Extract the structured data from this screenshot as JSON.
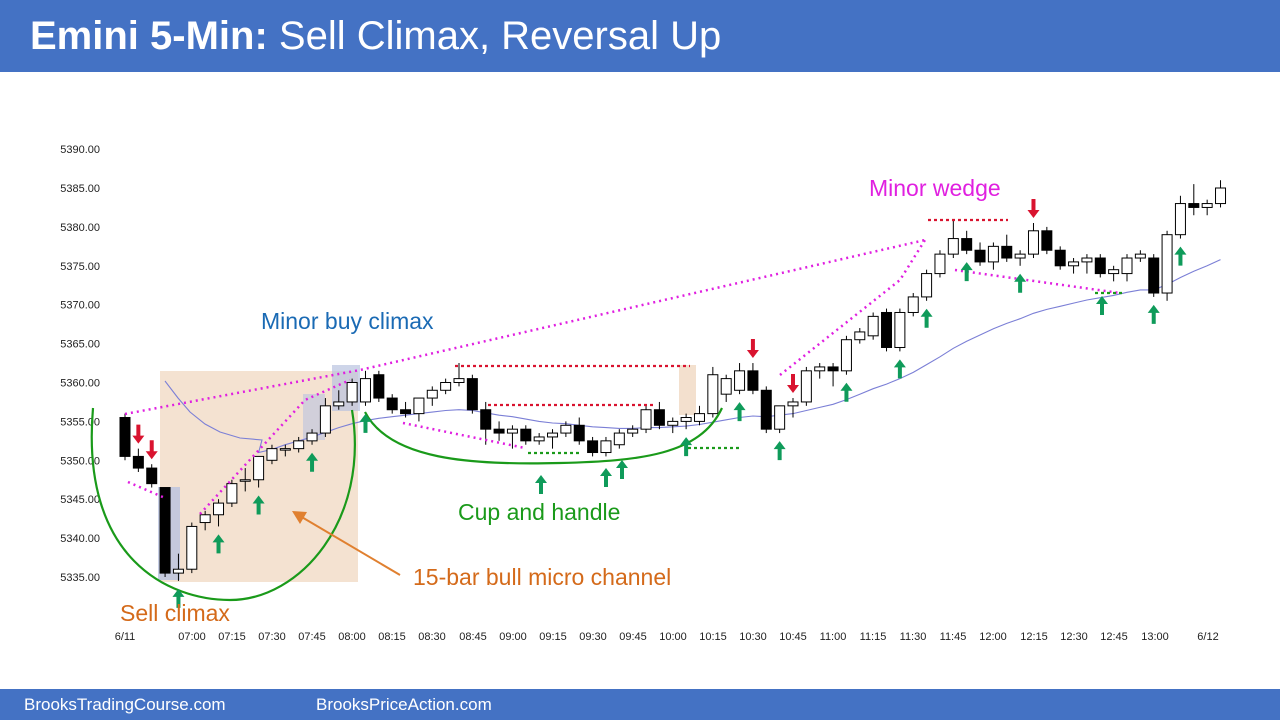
{
  "header": {
    "title_bold": "Emini 5-Min:",
    "title_rest": "Sell Climax, Reversal Up"
  },
  "footer": {
    "left_link": "BrooksTradingCourse.com",
    "right_link": "BrooksPriceAction.com"
  },
  "colors": {
    "banner": "#4472c4",
    "bull_arrow": "#0f9b5a",
    "bear_arrow": "#d9132f",
    "wedge_line": "#e020e0",
    "ema": "#7b7fd6",
    "cup": "#1a9a1a",
    "sell_climax_label": "#d46a1a",
    "buy_climax_label": "#1a6ab4"
  },
  "chart_data": {
    "type": "candlestick",
    "title": "Emini 5-Min: Sell Climax, Reversal Up",
    "y_ticks": [
      "5390.00",
      "5385.00",
      "5380.00",
      "5375.00",
      "5370.00",
      "5365.00",
      "5360.00",
      "5355.00",
      "5350.00",
      "5345.00",
      "5340.00",
      "5335.00"
    ],
    "ylim": [
      5332.5,
      5392.5
    ],
    "x_ticks": [
      "6/11",
      "07:00",
      "07:15",
      "07:30",
      "07:45",
      "08:00",
      "08:15",
      "08:30",
      "08:45",
      "09:00",
      "09:15",
      "09:30",
      "09:45",
      "10:00",
      "10:15",
      "10:30",
      "10:45",
      "11:00",
      "11:15",
      "11:30",
      "11:45",
      "12:00",
      "12:15",
      "12:30",
      "12:45",
      "13:00",
      "6/12"
    ],
    "grid": false,
    "candles": [
      {
        "o": 5355.5,
        "h": 5356.0,
        "l": 5350.0,
        "c": 5350.5
      },
      {
        "o": 5350.5,
        "h": 5351.5,
        "l": 5348.5,
        "c": 5349.0
      },
      {
        "o": 5349.0,
        "h": 5349.5,
        "l": 5346.5,
        "c": 5347.0
      },
      {
        "o": 5346.5,
        "h": 5346.5,
        "l": 5335.0,
        "c": 5335.5
      },
      {
        "o": 5335.5,
        "h": 5338.0,
        "l": 5334.5,
        "c": 5336.0
      },
      {
        "o": 5336.0,
        "h": 5342.0,
        "l": 5335.5,
        "c": 5341.5
      },
      {
        "o": 5342.0,
        "h": 5343.5,
        "l": 5341.0,
        "c": 5343.0
      },
      {
        "o": 5343.0,
        "h": 5345.0,
        "l": 5341.5,
        "c": 5344.5
      },
      {
        "o": 5344.5,
        "h": 5347.5,
        "l": 5344.0,
        "c": 5347.0
      },
      {
        "o": 5347.5,
        "h": 5349.0,
        "l": 5346.0,
        "c": 5347.5
      },
      {
        "o": 5347.5,
        "h": 5350.5,
        "l": 5346.5,
        "c": 5350.5
      },
      {
        "o": 5350.0,
        "h": 5352.0,
        "l": 5349.5,
        "c": 5351.5
      },
      {
        "o": 5351.5,
        "h": 5352.0,
        "l": 5350.5,
        "c": 5351.5
      },
      {
        "o": 5351.5,
        "h": 5353.0,
        "l": 5351.0,
        "c": 5352.5
      },
      {
        "o": 5352.5,
        "h": 5354.0,
        "l": 5352.0,
        "c": 5353.5
      },
      {
        "o": 5353.5,
        "h": 5358.0,
        "l": 5353.0,
        "c": 5357.0
      },
      {
        "o": 5357.0,
        "h": 5359.0,
        "l": 5356.5,
        "c": 5357.5
      },
      {
        "o": 5357.5,
        "h": 5360.5,
        "l": 5357.0,
        "c": 5360.0
      },
      {
        "o": 5357.5,
        "h": 5361.5,
        "l": 5357.0,
        "c": 5360.5
      },
      {
        "o": 5361.0,
        "h": 5361.5,
        "l": 5357.5,
        "c": 5358.0
      },
      {
        "o": 5358.0,
        "h": 5358.5,
        "l": 5356.0,
        "c": 5356.5
      },
      {
        "o": 5356.5,
        "h": 5357.5,
        "l": 5355.5,
        "c": 5356.0
      },
      {
        "o": 5356.0,
        "h": 5358.0,
        "l": 5355.0,
        "c": 5358.0
      },
      {
        "o": 5358.0,
        "h": 5359.5,
        "l": 5357.0,
        "c": 5359.0
      },
      {
        "o": 5359.0,
        "h": 5360.5,
        "l": 5358.5,
        "c": 5360.0
      },
      {
        "o": 5360.0,
        "h": 5362.5,
        "l": 5359.5,
        "c": 5360.5
      },
      {
        "o": 5360.5,
        "h": 5361.0,
        "l": 5356.0,
        "c": 5356.5
      },
      {
        "o": 5356.5,
        "h": 5357.5,
        "l": 5352.0,
        "c": 5354.0
      },
      {
        "o": 5354.0,
        "h": 5355.0,
        "l": 5352.5,
        "c": 5353.5
      },
      {
        "o": 5353.5,
        "h": 5354.5,
        "l": 5351.5,
        "c": 5354.0
      },
      {
        "o": 5354.0,
        "h": 5354.5,
        "l": 5352.0,
        "c": 5352.5
      },
      {
        "o": 5352.5,
        "h": 5353.5,
        "l": 5352.0,
        "c": 5353.0
      },
      {
        "o": 5353.0,
        "h": 5354.0,
        "l": 5351.5,
        "c": 5353.5
      },
      {
        "o": 5353.5,
        "h": 5355.0,
        "l": 5353.0,
        "c": 5354.5
      },
      {
        "o": 5354.5,
        "h": 5355.5,
        "l": 5352.0,
        "c": 5352.5
      },
      {
        "o": 5352.5,
        "h": 5353.0,
        "l": 5350.5,
        "c": 5351.0
      },
      {
        "o": 5351.0,
        "h": 5353.0,
        "l": 5350.5,
        "c": 5352.5
      },
      {
        "o": 5352.0,
        "h": 5354.0,
        "l": 5351.5,
        "c": 5353.5
      },
      {
        "o": 5353.5,
        "h": 5354.5,
        "l": 5353.0,
        "c": 5354.0
      },
      {
        "o": 5354.0,
        "h": 5357.0,
        "l": 5353.5,
        "c": 5356.5
      },
      {
        "o": 5356.5,
        "h": 5357.5,
        "l": 5354.0,
        "c": 5354.5
      },
      {
        "o": 5354.5,
        "h": 5355.5,
        "l": 5353.5,
        "c": 5355.0
      },
      {
        "o": 5355.0,
        "h": 5356.0,
        "l": 5354.0,
        "c": 5355.5
      },
      {
        "o": 5355.0,
        "h": 5357.0,
        "l": 5354.5,
        "c": 5356.0
      },
      {
        "o": 5356.0,
        "h": 5362.0,
        "l": 5355.5,
        "c": 5361.0
      },
      {
        "o": 5358.5,
        "h": 5361.0,
        "l": 5357.5,
        "c": 5360.5
      },
      {
        "o": 5359.0,
        "h": 5362.5,
        "l": 5358.5,
        "c": 5361.5
      },
      {
        "o": 5361.5,
        "h": 5362.5,
        "l": 5358.5,
        "c": 5359.0
      },
      {
        "o": 5359.0,
        "h": 5359.5,
        "l": 5353.5,
        "c": 5354.0
      },
      {
        "o": 5354.0,
        "h": 5357.0,
        "l": 5353.5,
        "c": 5357.0
      },
      {
        "o": 5357.0,
        "h": 5358.0,
        "l": 5355.5,
        "c": 5357.5
      },
      {
        "o": 5357.5,
        "h": 5362.0,
        "l": 5357.0,
        "c": 5361.5
      },
      {
        "o": 5361.5,
        "h": 5362.5,
        "l": 5360.5,
        "c": 5362.0
      },
      {
        "o": 5362.0,
        "h": 5362.5,
        "l": 5359.5,
        "c": 5361.5
      },
      {
        "o": 5361.5,
        "h": 5366.0,
        "l": 5361.0,
        "c": 5365.5
      },
      {
        "o": 5365.5,
        "h": 5367.0,
        "l": 5365.0,
        "c": 5366.5
      },
      {
        "o": 5366.0,
        "h": 5369.0,
        "l": 5365.5,
        "c": 5368.5
      },
      {
        "o": 5369.0,
        "h": 5369.5,
        "l": 5364.0,
        "c": 5364.5
      },
      {
        "o": 5364.5,
        "h": 5369.5,
        "l": 5364.0,
        "c": 5369.0
      },
      {
        "o": 5369.0,
        "h": 5371.5,
        "l": 5368.5,
        "c": 5371.0
      },
      {
        "o": 5371.0,
        "h": 5374.5,
        "l": 5370.5,
        "c": 5374.0
      },
      {
        "o": 5374.0,
        "h": 5377.0,
        "l": 5373.5,
        "c": 5376.5
      },
      {
        "o": 5376.5,
        "h": 5381.0,
        "l": 5376.0,
        "c": 5378.5
      },
      {
        "o": 5378.5,
        "h": 5379.5,
        "l": 5376.5,
        "c": 5377.0
      },
      {
        "o": 5377.0,
        "h": 5378.0,
        "l": 5375.0,
        "c": 5375.5
      },
      {
        "o": 5375.5,
        "h": 5378.0,
        "l": 5374.5,
        "c": 5377.5
      },
      {
        "o": 5377.5,
        "h": 5379.0,
        "l": 5375.5,
        "c": 5376.0
      },
      {
        "o": 5376.0,
        "h": 5377.0,
        "l": 5375.0,
        "c": 5376.5
      },
      {
        "o": 5376.5,
        "h": 5380.5,
        "l": 5376.0,
        "c": 5379.5
      },
      {
        "o": 5379.5,
        "h": 5380.0,
        "l": 5376.5,
        "c": 5377.0
      },
      {
        "o": 5377.0,
        "h": 5377.5,
        "l": 5374.5,
        "c": 5375.0
      },
      {
        "o": 5375.0,
        "h": 5376.0,
        "l": 5374.0,
        "c": 5375.5
      },
      {
        "o": 5375.5,
        "h": 5376.5,
        "l": 5374.0,
        "c": 5376.0
      },
      {
        "o": 5376.0,
        "h": 5376.5,
        "l": 5373.5,
        "c": 5374.0
      },
      {
        "o": 5374.0,
        "h": 5375.0,
        "l": 5373.0,
        "c": 5374.5
      },
      {
        "o": 5374.0,
        "h": 5376.5,
        "l": 5373.0,
        "c": 5376.0
      },
      {
        "o": 5376.0,
        "h": 5377.0,
        "l": 5375.5,
        "c": 5376.5
      },
      {
        "o": 5376.0,
        "h": 5376.5,
        "l": 5371.0,
        "c": 5371.5
      },
      {
        "o": 5371.5,
        "h": 5379.5,
        "l": 5370.5,
        "c": 5379.0
      },
      {
        "o": 5379.0,
        "h": 5384.0,
        "l": 5378.5,
        "c": 5383.0
      },
      {
        "o": 5383.0,
        "h": 5385.5,
        "l": 5381.5,
        "c": 5382.5
      },
      {
        "o": 5382.5,
        "h": 5383.5,
        "l": 5381.5,
        "c": 5383.0
      },
      {
        "o": 5383.0,
        "h": 5386.0,
        "l": 5382.5,
        "c": 5385.0
      }
    ],
    "ema_20": [
      5356.5,
      5355.5,
      5354.0,
      5352.5,
      5351.3,
      5350.5,
      5350.0,
      5349.9,
      5350.2,
      5350.6,
      5351.0,
      5351.4,
      5352.0,
      5352.5,
      5353.0,
      5353.6,
      5354.2,
      5354.7,
      5355.1,
      5355.4,
      5355.6,
      5355.8,
      5356.0,
      5356.2,
      5356.4,
      5356.5,
      5356.4,
      5356.1,
      5355.8,
      5355.6,
      5355.3,
      5355.0,
      5354.8,
      5354.7,
      5354.5,
      5354.3,
      5354.2,
      5354.1,
      5354.1,
      5354.2,
      5354.2,
      5354.3,
      5354.4,
      5354.6,
      5354.9,
      5355.2,
      5355.5,
      5355.7,
      5355.6,
      5355.8,
      5356.0,
      5356.4,
      5356.8,
      5357.2,
      5357.8,
      5358.5,
      5359.2,
      5359.8,
      5360.5,
      5361.3,
      5362.3,
      5363.3,
      5364.4,
      5365.3,
      5366.1,
      5366.9,
      5367.6,
      5368.2,
      5368.9,
      5369.4,
      5369.8,
      5370.2,
      5370.6,
      5370.9,
      5371.2,
      5371.6,
      5371.9,
      5371.9,
      5372.6,
      5373.5,
      5374.3,
      5375.0,
      5375.8
    ],
    "markers": {
      "bull_arrow_bars": [
        4,
        7,
        10,
        14,
        18,
        42,
        46,
        49,
        54,
        58,
        60,
        63,
        67,
        77,
        79
      ],
      "bear_arrow_bars": [
        1,
        2,
        47,
        50,
        68
      ]
    },
    "annotations": {
      "sell_climax": "Sell climax",
      "micro_channel": "15-bar bull micro channel",
      "minor_buy_climax": "Minor buy climax",
      "cup_and_handle": "Cup and handle",
      "minor_wedge": "Minor wedge"
    }
  }
}
